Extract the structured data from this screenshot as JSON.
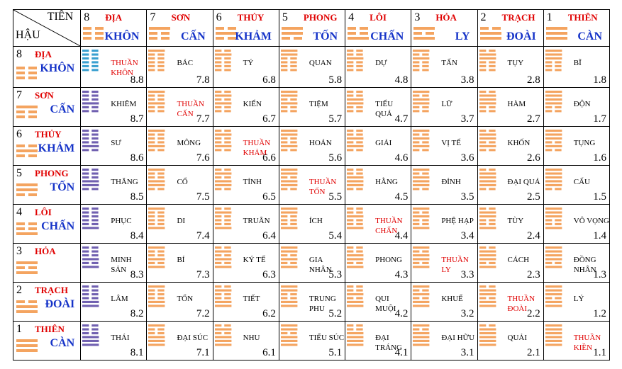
{
  "corner": {
    "tien": "TIÊN",
    "hau": "HẬU"
  },
  "colors": {
    "orange": "#f4a460",
    "blue": "#3aa0d0",
    "purple": "#7060b0",
    "red": "#e00000",
    "navy": "#1533c8"
  },
  "top": [
    {
      "num": "8",
      "red": "ĐỊA",
      "blue": "KHÔN",
      "lines": [
        0,
        0,
        0
      ],
      "color": "#f4a460"
    },
    {
      "num": "7",
      "red": "SƠN",
      "blue": "CẤN",
      "lines": [
        1,
        0,
        0
      ],
      "color": "#f4a460"
    },
    {
      "num": "6",
      "red": "THỦY",
      "blue": "KHẢM",
      "lines": [
        0,
        1,
        0
      ],
      "color": "#f4a460"
    },
    {
      "num": "5",
      "red": "PHONG",
      "blue": "TỐN",
      "lines": [
        1,
        1,
        0
      ],
      "color": "#f4a460"
    },
    {
      "num": "4",
      "red": "LÔI",
      "blue": "CHẤN",
      "lines": [
        0,
        0,
        1
      ],
      "color": "#f4a460"
    },
    {
      "num": "3",
      "red": "HỎA",
      "blue": "LY",
      "lines": [
        1,
        0,
        1
      ],
      "color": "#f4a460"
    },
    {
      "num": "2",
      "red": "TRẠCH",
      "blue": "ĐOÀI",
      "lines": [
        0,
        1,
        1
      ],
      "color": "#f4a460"
    },
    {
      "num": "1",
      "red": "THIÊN",
      "blue": "CÀN",
      "lines": [
        1,
        1,
        1
      ],
      "color": "#f4a460"
    }
  ],
  "rows": [
    {
      "num": "8",
      "red": "ĐỊA",
      "blue": "KHÔN",
      "lines": [
        0,
        0,
        0
      ],
      "cells": [
        {
          "name": "THUẦN KHÔN",
          "num": "8.8",
          "red": true
        },
        {
          "name": "BÁC",
          "num": "7.8"
        },
        {
          "name": "TỶ",
          "num": "6.8"
        },
        {
          "name": "QUAN",
          "num": "5.8"
        },
        {
          "name": "DỰ",
          "num": "4.8"
        },
        {
          "name": "TẤN",
          "num": "3.8"
        },
        {
          "name": "TỤY",
          "num": "2.8"
        },
        {
          "name": "BĨ",
          "num": "1.8"
        }
      ]
    },
    {
      "num": "7",
      "red": "SƠN",
      "blue": "CẤN",
      "lines": [
        1,
        0,
        0
      ],
      "cells": [
        {
          "name": "KHIÊM",
          "num": "8.7"
        },
        {
          "name": "THUẦN CẤN",
          "num": "7.7",
          "red": true
        },
        {
          "name": "KIỂN",
          "num": "6.7"
        },
        {
          "name": "TIỆM",
          "num": "5.7"
        },
        {
          "name": "TIỂU QUÁ",
          "num": "4.7"
        },
        {
          "name": "LỮ",
          "num": "3.7"
        },
        {
          "name": "HÀM",
          "num": "2.7"
        },
        {
          "name": "ĐỘN",
          "num": "1.7"
        }
      ]
    },
    {
      "num": "6",
      "red": "THỦY",
      "blue": "KHẢM",
      "lines": [
        0,
        1,
        0
      ],
      "cells": [
        {
          "name": "SƯ",
          "num": "8.6"
        },
        {
          "name": "MÔNG",
          "num": "7.6"
        },
        {
          "name": "THUẦN KHẢM",
          "num": "6.6",
          "red": true
        },
        {
          "name": "HOÁN",
          "num": "5.6"
        },
        {
          "name": "GIẢI",
          "num": "4.6"
        },
        {
          "name": "VỊ TẾ",
          "num": "3.6"
        },
        {
          "name": "KHỐN",
          "num": "2.6"
        },
        {
          "name": "TỤNG",
          "num": "1.6"
        }
      ]
    },
    {
      "num": "5",
      "red": "PHONG",
      "blue": "TỐN",
      "lines": [
        1,
        1,
        0
      ],
      "cells": [
        {
          "name": "THĂNG",
          "num": "8.5"
        },
        {
          "name": "CỔ",
          "num": "7.5"
        },
        {
          "name": "TỈNH",
          "num": "6.5"
        },
        {
          "name": "THUẦN TỐN",
          "num": "5.5",
          "red": true
        },
        {
          "name": "HẰNG",
          "num": "4.5"
        },
        {
          "name": "ĐỈNH",
          "num": "3.5"
        },
        {
          "name": "ĐẠI QUÁ",
          "num": "2.5"
        },
        {
          "name": "CẤU",
          "num": "1.5"
        }
      ]
    },
    {
      "num": "4",
      "red": "LÔI",
      "blue": "CHẤN",
      "lines": [
        0,
        0,
        1
      ],
      "cells": [
        {
          "name": "PHỤC",
          "num": "8.4"
        },
        {
          "name": "DI",
          "num": "7.4"
        },
        {
          "name": "TRUÂN",
          "num": "6.4"
        },
        {
          "name": "ÍCH",
          "num": "5.4"
        },
        {
          "name": "THUẦN CHẤN",
          "num": "4.4",
          "red": true
        },
        {
          "name": "PHỆ HẠP",
          "num": "3.4"
        },
        {
          "name": "TÙY",
          "num": "2.4"
        },
        {
          "name": "VÔ VỌNG",
          "num": "1.4"
        }
      ]
    },
    {
      "num": "3",
      "red": "HỎA",
      "blue": "",
      "lines": [
        1,
        0,
        1
      ],
      "cells": [
        {
          "name": "MINH SẢN",
          "num": "8.3"
        },
        {
          "name": "BÍ",
          "num": "7.3"
        },
        {
          "name": "KÝ TẾ",
          "num": "6.3"
        },
        {
          "name": "GIA NHÂN",
          "num": "5.3"
        },
        {
          "name": "PHONG",
          "num": "4.3"
        },
        {
          "name": "THUẦN LY",
          "num": "3.3",
          "red": true
        },
        {
          "name": "CÁCH",
          "num": "2.3"
        },
        {
          "name": "ĐỒNG NHÂN",
          "num": "1.3"
        }
      ]
    },
    {
      "num": "2",
      "red": "TRẠCH",
      "blue": "ĐOÀI",
      "lines": [
        0,
        1,
        1
      ],
      "cells": [
        {
          "name": "LÂM",
          "num": "8.2"
        },
        {
          "name": "TỔN",
          "num": "7.2"
        },
        {
          "name": "TIẾT",
          "num": "6.2"
        },
        {
          "name": "TRUNG PHU",
          "num": "5.2"
        },
        {
          "name": "QUI MUỘI",
          "num": "4.2"
        },
        {
          "name": "KHUỂ",
          "num": "3.2"
        },
        {
          "name": "THUẦN ĐOÀI",
          "num": "2.2",
          "red": true
        },
        {
          "name": "LÝ",
          "num": "1.2"
        }
      ]
    },
    {
      "num": "1",
      "red": "THIÊN",
      "blue": "CÀN",
      "lines": [
        1,
        1,
        1
      ],
      "cells": [
        {
          "name": "THÁI",
          "num": "8.1"
        },
        {
          "name": "ĐẠI SÚC",
          "num": "7.1"
        },
        {
          "name": "NHU",
          "num": "6.1"
        },
        {
          "name": "TIỂU SÚC",
          "num": "5.1"
        },
        {
          "name": "ĐẠI TRÁNG",
          "num": "4.1"
        },
        {
          "name": "ĐẠI HỮU",
          "num": "3.1"
        },
        {
          "name": "QUẢI",
          "num": "2.1"
        },
        {
          "name": "THUẦN KIỀN",
          "num": "1.1",
          "red": true
        }
      ]
    }
  ]
}
